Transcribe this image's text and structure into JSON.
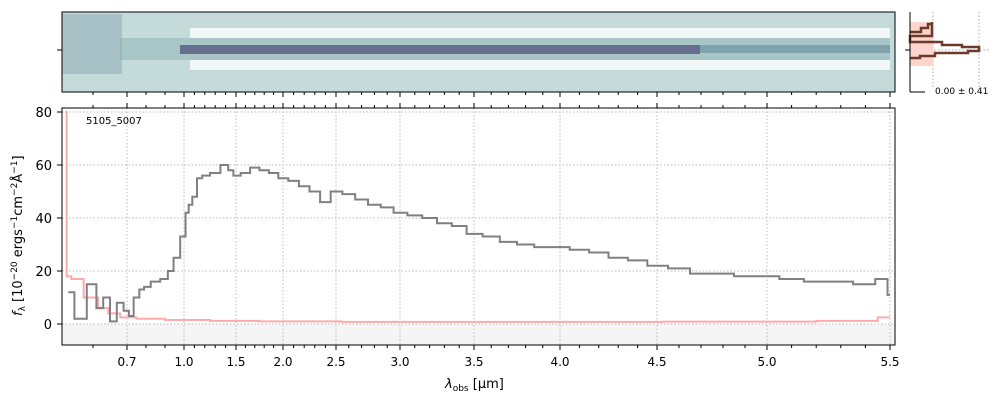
{
  "chart_data": {
    "type": "line",
    "label": "5105_5007",
    "xlabel_main": "λ",
    "xlabel_sub": "obs",
    "xlabel_unit": "[μm]",
    "ylabel": "f_λ [10^-20 ergs^-1 cm^-2 Å^-1]",
    "ylabel_parts": {
      "f": "f",
      "lam": "λ",
      "a": " [10",
      "e1": "−20",
      "b": " ergs",
      "e2": "−1",
      "c": "cm",
      "e3": "−2",
      "d": "Å",
      "e4": "−1",
      "e": "]"
    },
    "xlim": [
      0.55,
      5.52
    ],
    "ylim": [
      -8,
      81
    ],
    "x_ticks": [
      0.7,
      1.0,
      1.5,
      2.0,
      2.5,
      3.0,
      3.5,
      4.0,
      4.5,
      5.0,
      5.5
    ],
    "x_tick_labels": [
      "0.7",
      "1.0",
      "1.5",
      "2.0",
      "2.5",
      "3.0",
      "3.5",
      "4.0",
      "4.5",
      "5.0",
      "5.5"
    ],
    "y_ticks": [
      0,
      20,
      40,
      60,
      80
    ],
    "y_tick_labels": [
      "0",
      "20",
      "40",
      "60",
      "80"
    ],
    "grid": true,
    "series": [
      {
        "role": "flux",
        "color": "#808080",
        "x": [
          0.56,
          0.58,
          0.6,
          0.62,
          0.64,
          0.66,
          0.68,
          0.7,
          0.72,
          0.75,
          0.78,
          0.8,
          0.85,
          0.9,
          0.93,
          0.96,
          1.0,
          1.03,
          1.06,
          1.1,
          1.15,
          1.2,
          1.3,
          1.4,
          1.45,
          1.5,
          1.6,
          1.7,
          1.8,
          1.9,
          2.0,
          2.1,
          2.2,
          2.3,
          2.4,
          2.5,
          2.6,
          2.7,
          2.8,
          2.9,
          3.0,
          3.1,
          3.2,
          3.3,
          3.4,
          3.5,
          3.6,
          3.7,
          3.8,
          3.9,
          4.0,
          4.1,
          4.2,
          4.3,
          4.4,
          4.5,
          4.6,
          4.7,
          4.8,
          4.9,
          5.0,
          5.1,
          5.2,
          5.3,
          5.4,
          5.48,
          5.5
        ],
        "y": [
          12,
          2,
          15,
          6,
          10,
          1,
          8,
          5,
          3,
          10,
          13,
          14,
          16,
          17,
          20,
          25,
          33,
          42,
          45,
          48,
          55,
          56,
          57,
          60,
          58,
          56,
          57,
          59,
          58,
          57,
          55,
          54,
          52,
          50,
          46,
          50,
          49,
          47,
          45,
          44,
          42,
          41,
          40,
          38,
          37,
          34,
          33,
          31,
          30,
          29,
          29,
          28,
          27,
          25,
          24,
          22,
          21,
          19,
          19,
          18,
          18,
          17,
          16,
          16,
          15,
          17,
          11
        ]
      },
      {
        "role": "error",
        "color": "#ffaaaa",
        "x": [
          0.555,
          0.56,
          0.57,
          0.6,
          0.63,
          0.66,
          0.7,
          0.8,
          1.0,
          1.5,
          2.0,
          3.0,
          4.0,
          5.0,
          5.4,
          5.5
        ],
        "y": [
          80,
          18,
          17,
          10,
          6,
          4,
          2.5,
          2,
          1.5,
          1.2,
          1,
          0.8,
          0.8,
          0.9,
          1.2,
          2.5
        ]
      }
    ],
    "spatial_profile": {
      "label": "0.00 ± 0.41",
      "line_color": "#6b3a2a",
      "fill_color": "#fcd5cc"
    }
  }
}
